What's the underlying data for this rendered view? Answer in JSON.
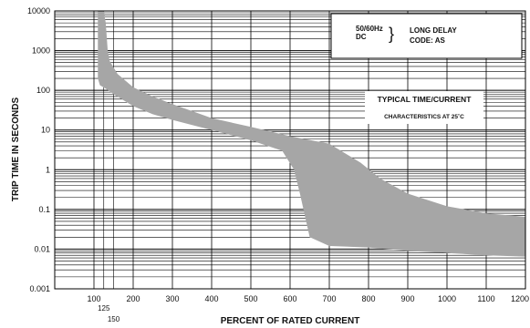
{
  "chart_data": {
    "type": "area",
    "title": "",
    "xlabel": "PERCENT OF RATED CURRENT",
    "ylabel": "TRIP TIME IN SECONDS",
    "xlim": [
      0,
      1200
    ],
    "ylim": [
      0.001,
      10000
    ],
    "yscale": "log",
    "grid": true,
    "x_tick_labels": [
      "100",
      "200",
      "300",
      "400",
      "500",
      "600",
      "700",
      "800",
      "900",
      "1000",
      "1100",
      "1200"
    ],
    "x_tick_values": [
      100,
      200,
      300,
      400,
      500,
      600,
      700,
      800,
      900,
      1000,
      1100,
      1200
    ],
    "x_extra_labels": [
      {
        "value": 125,
        "label": "125"
      },
      {
        "value": 150,
        "label": "150"
      }
    ],
    "y_tick_labels": [
      "10000",
      "1000",
      "100",
      "10",
      "1",
      "0.1",
      "0.01",
      "0.001"
    ],
    "y_tick_values": [
      10000,
      1000,
      100,
      10,
      1,
      0.1,
      0.01,
      0.001
    ],
    "legend_box": {
      "freq": "50/60Hz",
      "dc": "DC",
      "brace": "}",
      "line1": "LONG DELAY",
      "line2": "CODE: AS"
    },
    "annotation": {
      "line1": "TYPICAL TIME/CURRENT",
      "line2": "CHARACTERISTICS AT 25˚C"
    },
    "band": {
      "color": "#a6a6a6",
      "upper": [
        [
          110,
          10000
        ],
        [
          115,
          10000
        ],
        [
          125,
          10000
        ],
        [
          130,
          5000
        ],
        [
          135,
          1000
        ],
        [
          140,
          550
        ],
        [
          160,
          260
        ],
        [
          200,
          120
        ],
        [
          250,
          70
        ],
        [
          300,
          45
        ],
        [
          400,
          20
        ],
        [
          500,
          12
        ],
        [
          600,
          7
        ],
        [
          700,
          4.5
        ],
        [
          780,
          1.5
        ],
        [
          830,
          0.6
        ],
        [
          900,
          0.25
        ],
        [
          1000,
          0.12
        ],
        [
          1100,
          0.08
        ],
        [
          1200,
          0.065
        ]
      ],
      "lower": [
        [
          110,
          10000
        ],
        [
          110,
          200
        ],
        [
          115,
          135
        ],
        [
          130,
          110
        ],
        [
          150,
          80
        ],
        [
          200,
          40
        ],
        [
          250,
          25
        ],
        [
          300,
          18
        ],
        [
          400,
          10
        ],
        [
          500,
          5.5
        ],
        [
          580,
          3
        ],
        [
          610,
          1
        ],
        [
          625,
          0.25
        ],
        [
          650,
          0.02
        ],
        [
          700,
          0.012
        ],
        [
          800,
          0.011
        ],
        [
          900,
          0.009
        ],
        [
          1000,
          0.008
        ],
        [
          1100,
          0.007
        ],
        [
          1200,
          0.0065
        ]
      ]
    }
  }
}
